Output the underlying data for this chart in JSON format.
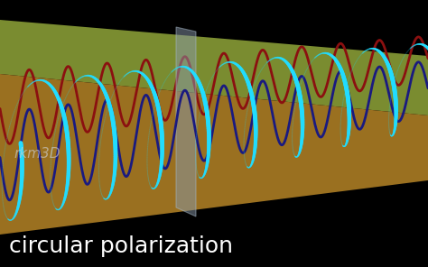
{
  "background_color": "#000000",
  "title": "circular polarization",
  "watermark": "rkm3D",
  "beam_top_color": "#7a8c30",
  "beam_bottom_color": "#9a7020",
  "beam_side_left_color": "#556020",
  "filter_color": "#8899aa",
  "navy_color": "#1a1a80",
  "cyan_color": "#22ddff",
  "red_color": "#8b1010",
  "figsize": [
    4.74,
    2.96
  ],
  "dpi": 100
}
